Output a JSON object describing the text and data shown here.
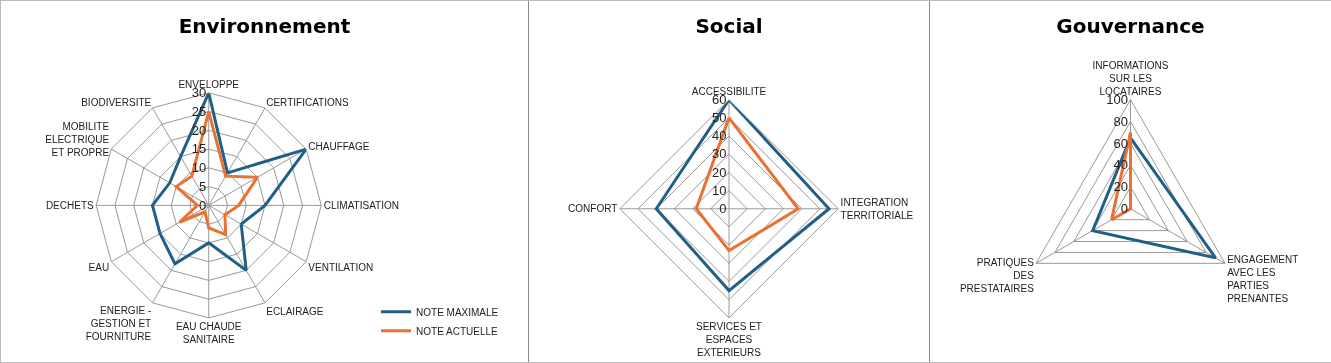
{
  "chart_data": [
    {
      "type": "radar",
      "title": "Environnement",
      "categories": [
        "ENVELOPPE",
        "CERTIFICATIONS",
        "CHAUFFAGE",
        "CLIMATISATION",
        "VENTILATION",
        "ECLAIRAGE",
        "EAU CHAUDE SANITAIRE",
        "ENERGIE - GESTION ET FOURNITURE",
        "EAU",
        "DECHETS",
        "MOBILITE ELECTRIQUE ET PROPRE",
        "BIODIVERSITE"
      ],
      "series": [
        {
          "name": "NOTE MAXIMALE",
          "color": "#215f86",
          "values": [
            30,
            10,
            30,
            15,
            10,
            20,
            10,
            18,
            15,
            15,
            12,
            15
          ]
        },
        {
          "name": "NOTE ACTUELLE",
          "color": "#e97132",
          "values": [
            25,
            9,
            15,
            8,
            5,
            9,
            6,
            2,
            9,
            3,
            10,
            9
          ]
        }
      ],
      "ylim": [
        0,
        30
      ],
      "yticks": [
        0,
        5,
        10,
        15,
        20,
        25,
        30
      ],
      "grid": true,
      "legend": "bottom right",
      "marker": "none",
      "line_style": "solid"
    },
    {
      "type": "radar",
      "title": "Social",
      "categories": [
        "ACCESSIBILITE",
        "INTEGRATION TERRITORIALE",
        "SERVICES ET ESPACES EXTERIEURS",
        "CONFORT"
      ],
      "series": [
        {
          "color": "#215f86",
          "values": [
            60,
            55,
            45,
            40
          ]
        },
        {
          "color": "#e97132",
          "values": [
            50,
            38,
            23,
            18
          ]
        }
      ],
      "ylim": [
        0,
        60
      ],
      "yticks": [
        0,
        10,
        20,
        30,
        40,
        50,
        60
      ],
      "grid": true,
      "legend": false,
      "marker": "none",
      "line_style": "solid"
    },
    {
      "type": "radar",
      "title": "Gouvernance",
      "categories": [
        "INFORMATIONS SUR LES LOCATAIRES",
        "ENGAGEMENT AVEC LES PARTIES PRENANTES",
        "PRATIQUES DES PRESTATAIRES"
      ],
      "series": [
        {
          "color": "#215f86",
          "values": [
            65,
            90,
            40
          ]
        },
        {
          "color": "#e97132",
          "values": [
            70,
            0,
            20
          ]
        }
      ],
      "ylim": [
        0,
        100
      ],
      "yticks": [
        0,
        20,
        40,
        60,
        80,
        100
      ],
      "grid": true,
      "legend": false,
      "marker": "none",
      "line_style": "solid"
    }
  ]
}
